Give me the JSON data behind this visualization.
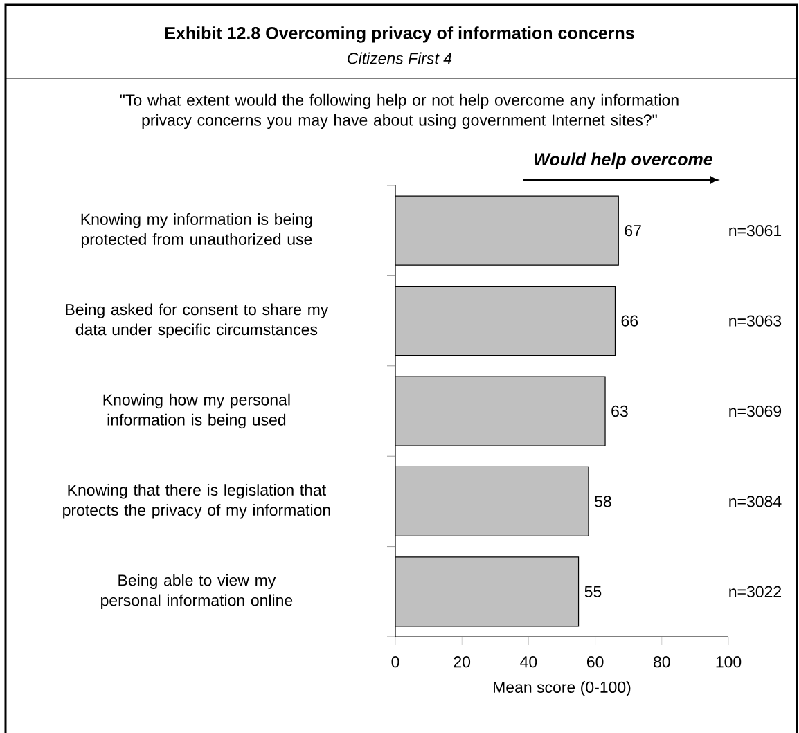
{
  "chart_data": {
    "type": "bar",
    "orientation": "horizontal",
    "title": "Exhibit 12.8 Overcoming privacy of information concerns",
    "subtitle": "Citizens First 4",
    "categories": [
      "Knowing my information is being protected from unauthorized use",
      "Being asked for consent to share my data under specific circumstances",
      "Knowing how my personal information is being used",
      "Knowing that there is legislation that protects the privacy of my information",
      "Being able to view my personal information online"
    ],
    "values": [
      67,
      66,
      63,
      58,
      55
    ],
    "color": "#c0c0c0",
    "data_labels": true,
    "xlim": [
      0,
      100
    ],
    "xticks": [
      0,
      20,
      40,
      60,
      80,
      100
    ],
    "xlabel": "Mean score (0-100)",
    "grid": false,
    "annotations": [
      "\"To what extent would the following help or not help overcome any information privacy concerns you may have about using government Internet sites?\"",
      "Would help overcome",
      "n=3061",
      "n=3063",
      "n=3069",
      "n=3084",
      "n=3022"
    ]
  }
}
